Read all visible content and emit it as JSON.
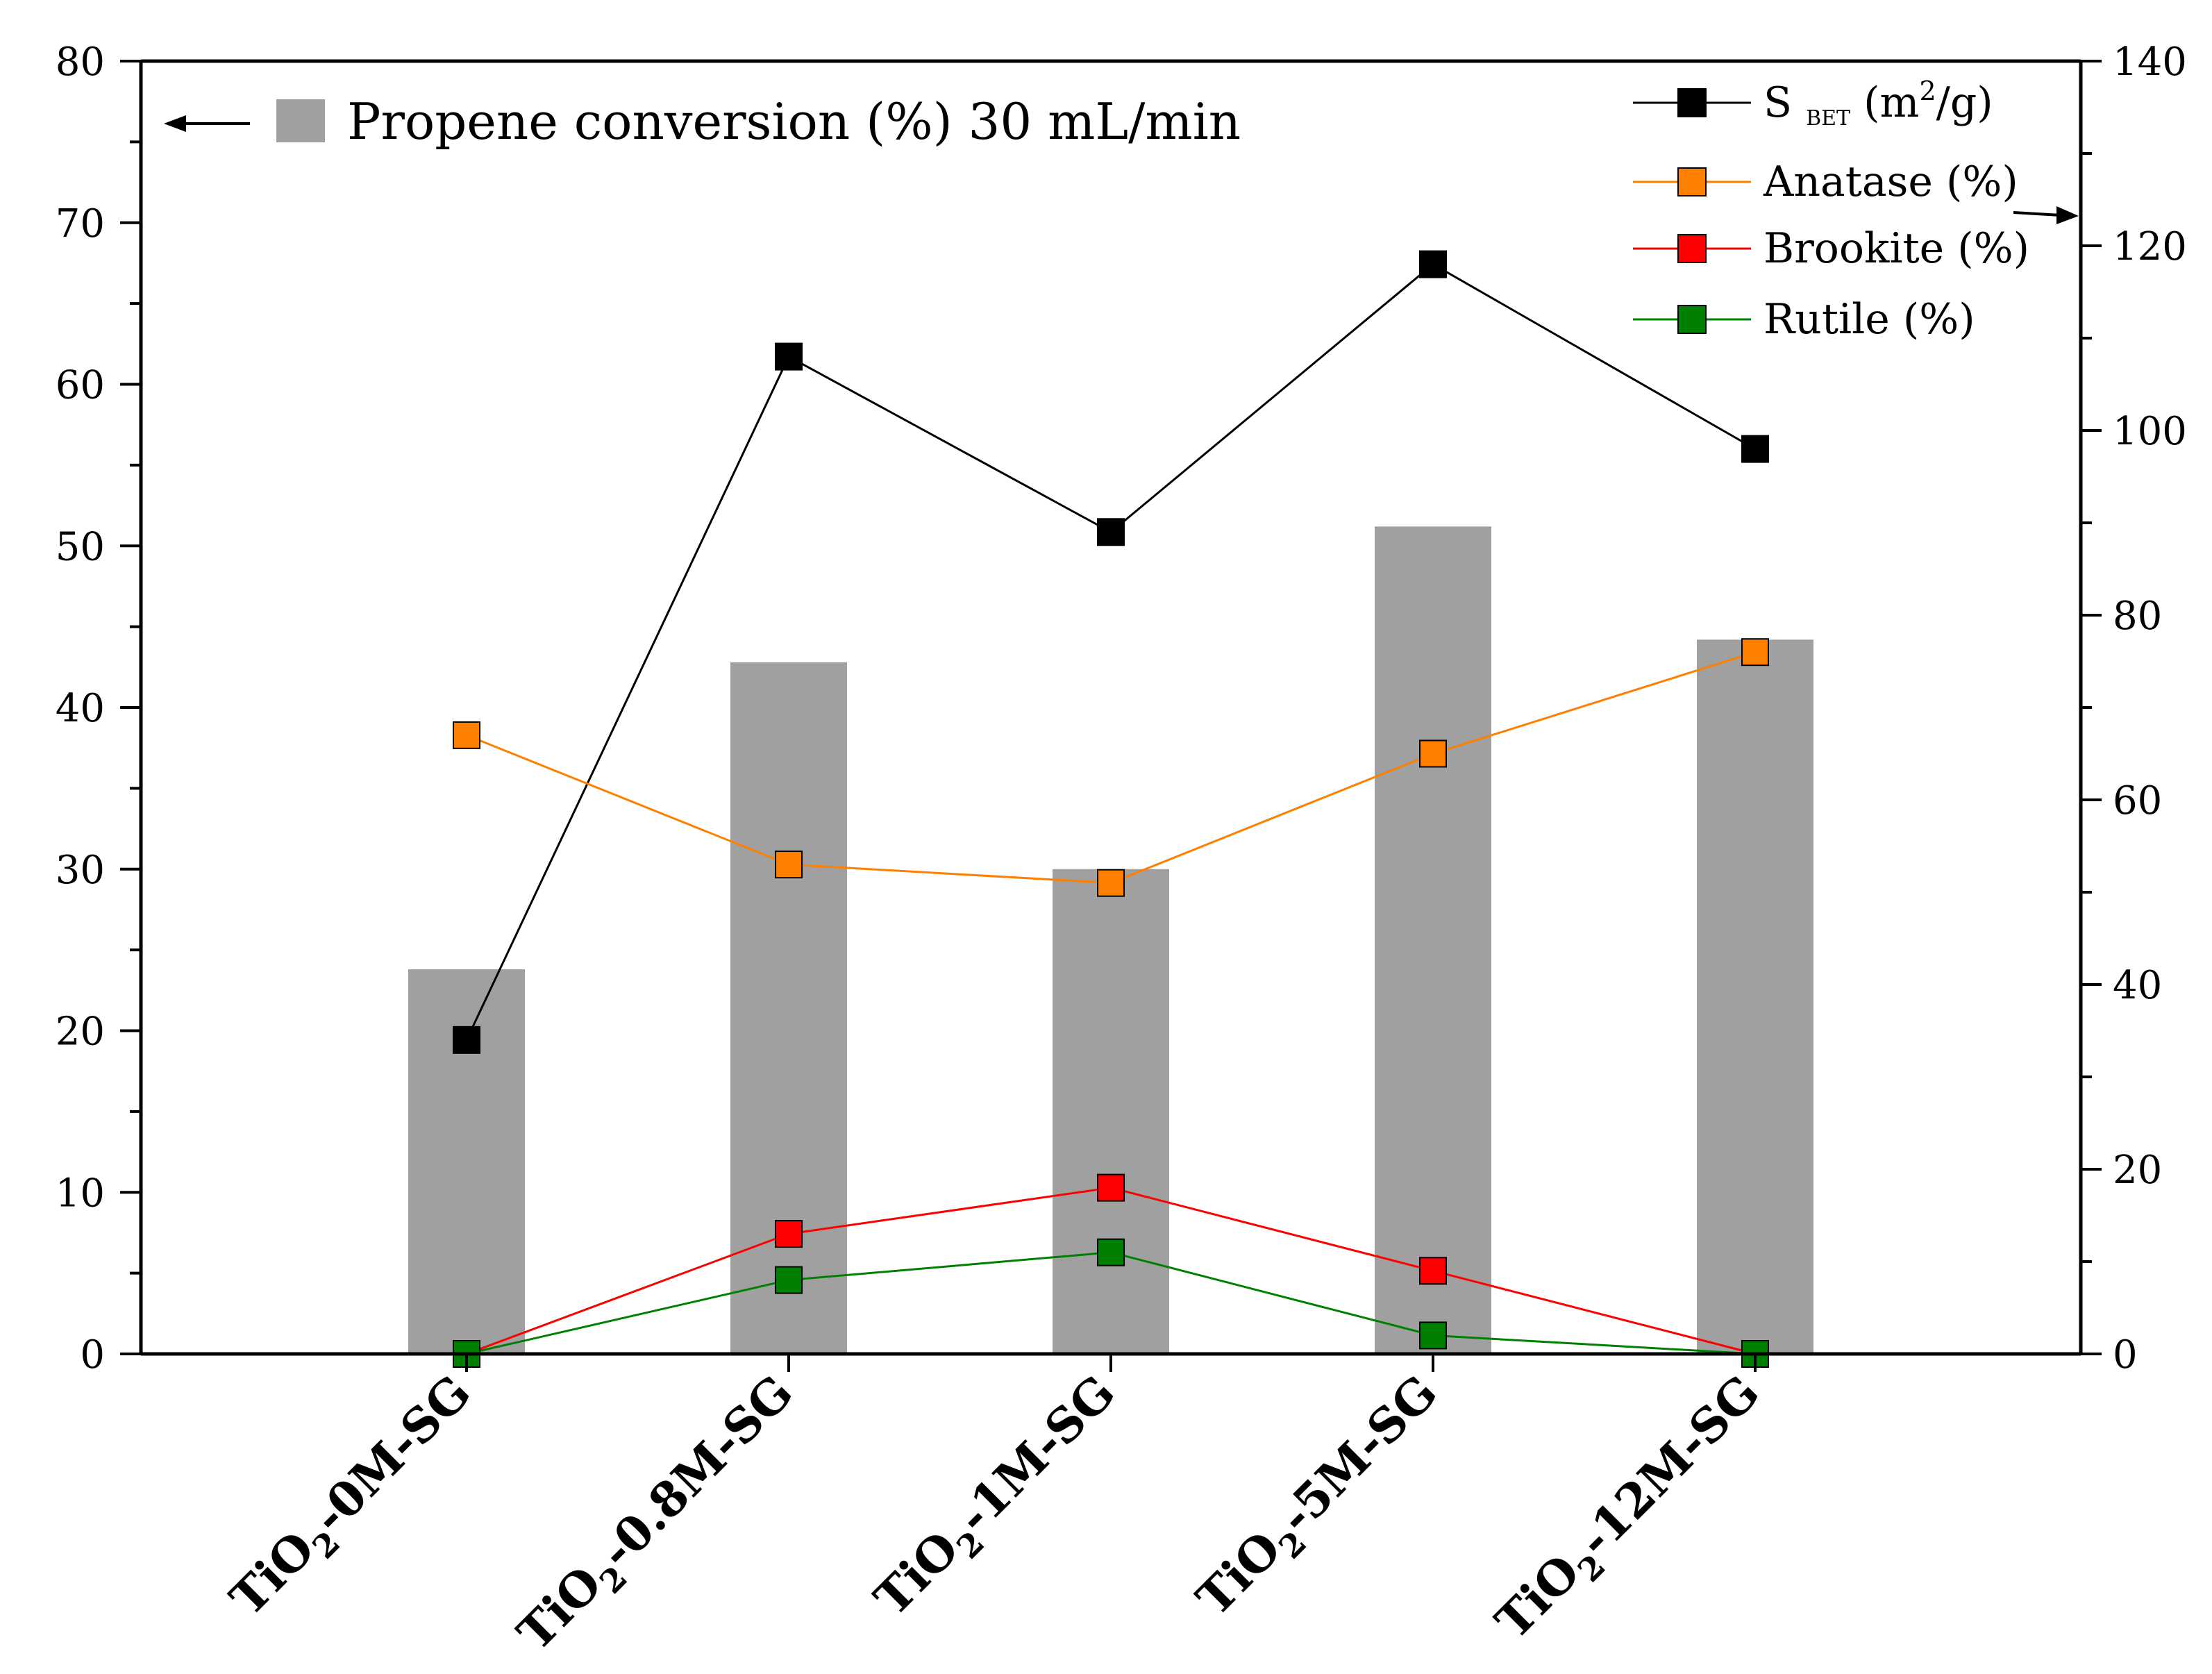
{
  "chart_data": {
    "type": "bar+line",
    "categories": [
      {
        "base": "TiO",
        "sub": "2",
        "suffix": "-0M-SG"
      },
      {
        "base": "TiO",
        "sub": "2",
        "suffix": "-0.8M-SG"
      },
      {
        "base": "TiO",
        "sub": "2",
        "suffix": "-1M-SG"
      },
      {
        "base": "TiO",
        "sub": "2",
        "suffix": "-5M-SG"
      },
      {
        "base": "TiO",
        "sub": "2",
        "suffix": "-12M-SG"
      }
    ],
    "left_axis": {
      "min": 0,
      "max": 80,
      "major": 10,
      "ticks": [
        "0",
        "10",
        "20",
        "30",
        "40",
        "50",
        "60",
        "70",
        "80"
      ]
    },
    "right_axis": {
      "min": 0,
      "max": 140,
      "major": 20,
      "ticks": [
        "0",
        "20",
        "40",
        "60",
        "80",
        "100",
        "120",
        "140"
      ]
    },
    "bars": {
      "name": "Propene conversion (%) 30 mL/min",
      "axis": "left",
      "color": "#a0a0a0",
      "values": [
        23.8,
        42.8,
        30.0,
        51.2,
        44.2
      ]
    },
    "series": [
      {
        "key": "sbet",
        "name_main": "S",
        "name_sub": "BET",
        "name_unit_pre": " (m",
        "name_sup": "2",
        "name_unit_post": "/g)",
        "axis": "right",
        "color": "#000000",
        "values": [
          34,
          108,
          89,
          118,
          98
        ]
      },
      {
        "key": "anatase",
        "name": "Anatase (%)",
        "axis": "right",
        "color": "#ff8000",
        "values": [
          67,
          53,
          51,
          65,
          76
        ]
      },
      {
        "key": "brookite",
        "name": "Brookite (%)",
        "axis": "right",
        "color": "#ff0000",
        "values": [
          0,
          13,
          18,
          9,
          0
        ]
      },
      {
        "key": "rutile",
        "name": "Rutile (%)",
        "axis": "right",
        "color": "#008000",
        "values": [
          0,
          8,
          11,
          2,
          0
        ]
      }
    ],
    "legend": {
      "bar_label": "Propene conversion (%) 30 mL/min",
      "bar_arrow": "left",
      "lines_arrow": "right",
      "position": "top"
    }
  }
}
